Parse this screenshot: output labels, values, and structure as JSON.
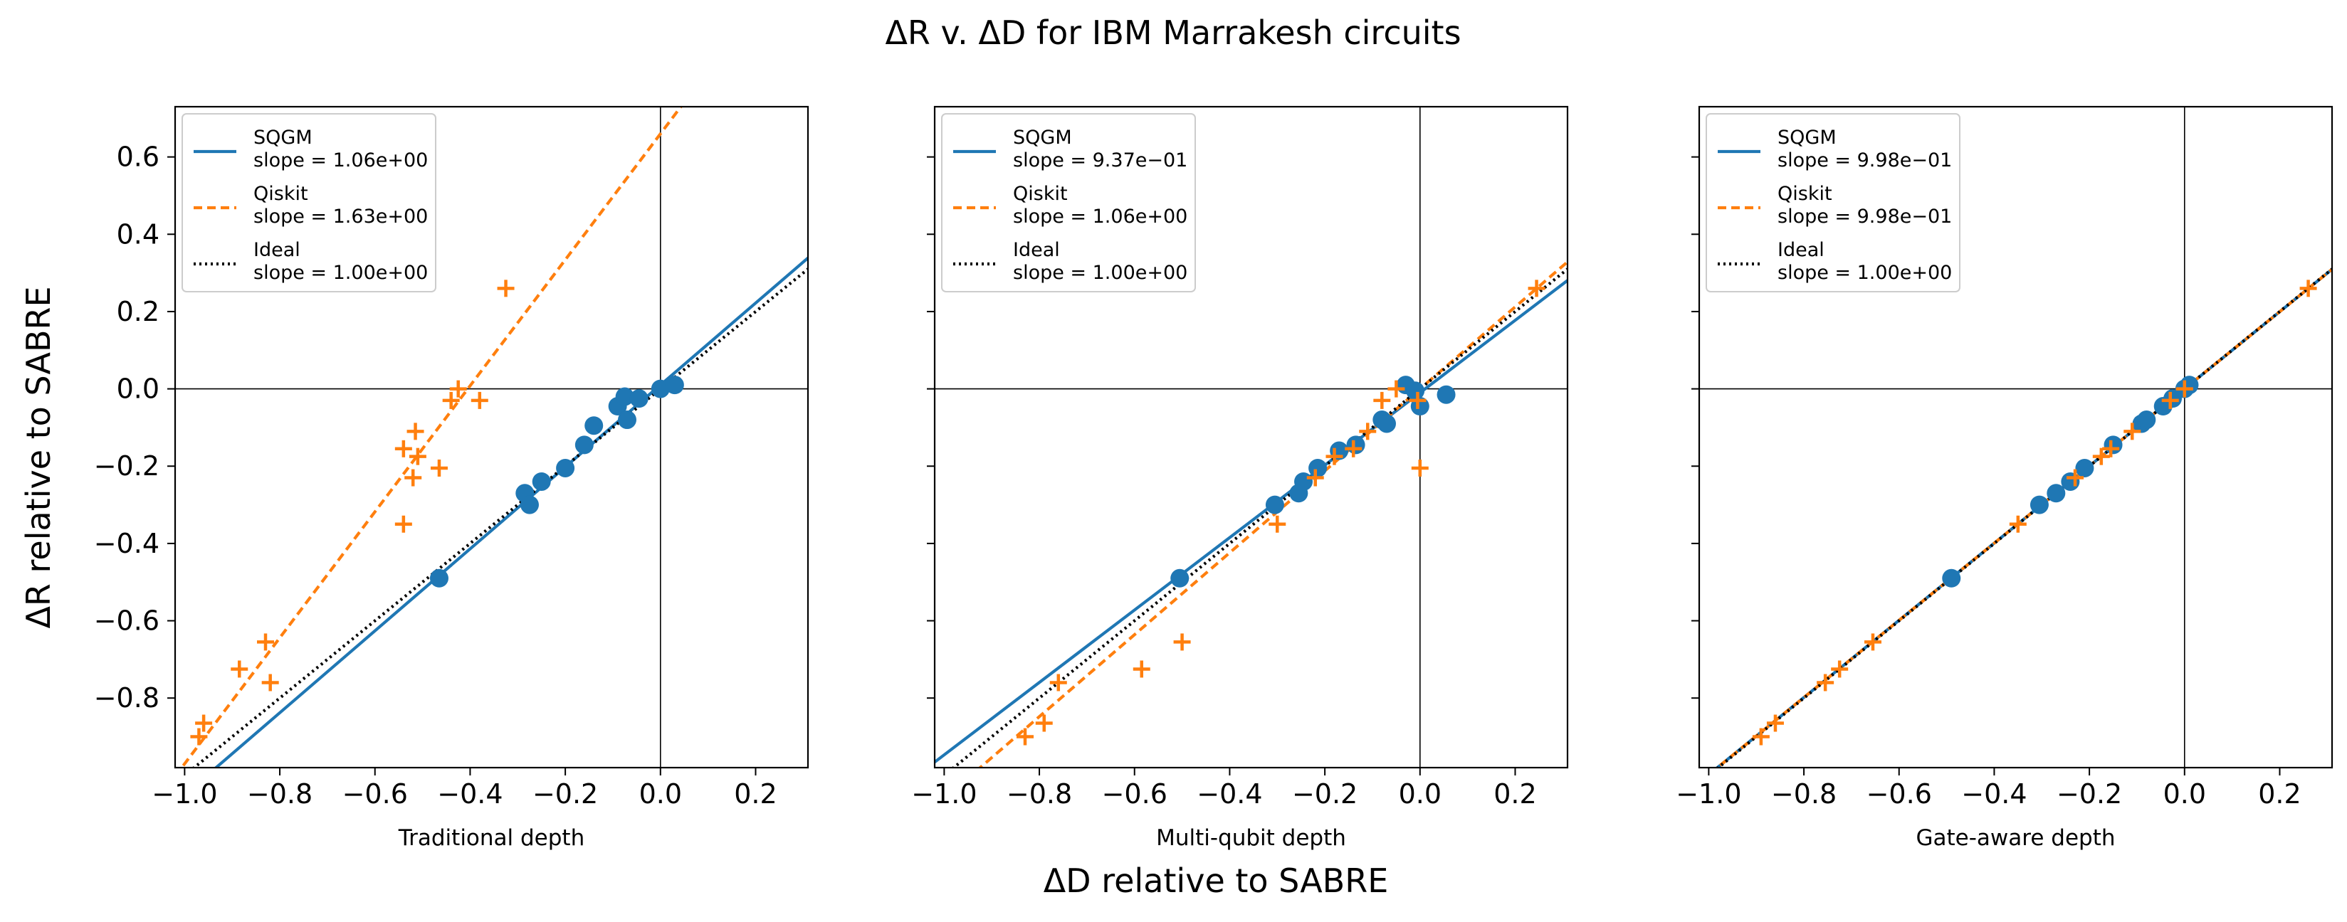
{
  "figure": {
    "title": "ΔR v. ΔD for IBM Marrakesh circuits",
    "ylabel": "ΔR relative to SABRE",
    "xlabel": "ΔD relative to SABRE"
  },
  "colors": {
    "sqgm": "#1f77b4",
    "qiskit": "#ff7f0e",
    "ideal": "#000000",
    "zero_line": "#000000"
  },
  "chart_data": [
    {
      "type": "scatter",
      "xlabel": "Traditional depth",
      "xlim": [
        -1.02,
        0.31
      ],
      "ylim": [
        -0.98,
        0.73
      ],
      "xticks": [
        -1.0,
        -0.8,
        -0.6,
        -0.4,
        -0.2,
        0.0,
        0.2
      ],
      "xtick_labels": [
        "−1.0",
        "−0.8",
        "−0.6",
        "−0.4",
        "−0.2",
        "0.0",
        "0.2"
      ],
      "yticks": [
        -0.8,
        -0.6,
        -0.4,
        -0.2,
        0.0,
        0.2,
        0.4,
        0.6
      ],
      "ytick_labels": [
        "−0.8",
        "−0.6",
        "−0.4",
        "−0.2",
        "0.0",
        "0.2",
        "0.4",
        "0.6"
      ],
      "show_ytick_labels": true,
      "legend_position": "top-left",
      "series": [
        {
          "name": "SQGM",
          "legend_label": "slope = 1.06e+00",
          "kind": "fit",
          "slope": 1.06,
          "intercept": 0.01,
          "points": [
            [
              -0.465,
              -0.49
            ],
            [
              -0.285,
              -0.27
            ],
            [
              -0.275,
              -0.3
            ],
            [
              -0.25,
              -0.24
            ],
            [
              -0.2,
              -0.205
            ],
            [
              -0.16,
              -0.145
            ],
            [
              -0.14,
              -0.095
            ],
            [
              -0.09,
              -0.045
            ],
            [
              -0.075,
              -0.02
            ],
            [
              -0.07,
              -0.08
            ],
            [
              -0.045,
              -0.025
            ],
            [
              0.0,
              0.0
            ],
            [
              0.03,
              0.01
            ]
          ]
        },
        {
          "name": "Qiskit",
          "legend_label": "slope = 1.63e+00",
          "kind": "fit",
          "slope": 1.63,
          "intercept": 0.66,
          "points": [
            [
              -0.97,
              -0.9
            ],
            [
              -0.96,
              -0.865
            ],
            [
              -0.885,
              -0.725
            ],
            [
              -0.83,
              -0.655
            ],
            [
              -0.82,
              -0.76
            ],
            [
              -0.54,
              -0.155
            ],
            [
              -0.54,
              -0.35
            ],
            [
              -0.52,
              -0.23
            ],
            [
              -0.515,
              -0.11
            ],
            [
              -0.51,
              -0.175
            ],
            [
              -0.465,
              -0.205
            ],
            [
              -0.44,
              -0.03
            ],
            [
              -0.425,
              0.0
            ],
            [
              -0.38,
              -0.03
            ],
            [
              -0.325,
              0.26
            ]
          ]
        },
        {
          "name": "Ideal",
          "legend_label": "slope = 1.00e+00",
          "kind": "reference",
          "slope": 1.0,
          "intercept": 0.0
        }
      ]
    },
    {
      "type": "scatter",
      "xlabel": "Multi-qubit depth",
      "xlim": [
        -1.02,
        0.31
      ],
      "ylim": [
        -0.98,
        0.73
      ],
      "xticks": [
        -1.0,
        -0.8,
        -0.6,
        -0.4,
        -0.2,
        0.0,
        0.2
      ],
      "xtick_labels": [
        "−1.0",
        "−0.8",
        "−0.6",
        "−0.4",
        "−0.2",
        "0.0",
        "0.2"
      ],
      "yticks": [
        -0.8,
        -0.6,
        -0.4,
        -0.2,
        0.0,
        0.2,
        0.4,
        0.6
      ],
      "ytick_labels": [
        "−0.8",
        "−0.6",
        "−0.4",
        "−0.2",
        "0.0",
        "0.2",
        "0.4",
        "0.6"
      ],
      "show_ytick_labels": false,
      "legend_position": "top-left",
      "series": [
        {
          "name": "SQGM",
          "legend_label": "slope = 9.37e−01",
          "kind": "fit",
          "slope": 0.937,
          "intercept": -0.01,
          "points": [
            [
              -0.505,
              -0.49
            ],
            [
              -0.305,
              -0.3
            ],
            [
              -0.255,
              -0.27
            ],
            [
              -0.245,
              -0.24
            ],
            [
              -0.215,
              -0.205
            ],
            [
              -0.17,
              -0.16
            ],
            [
              -0.135,
              -0.145
            ],
            [
              -0.08,
              -0.08
            ],
            [
              -0.07,
              -0.09
            ],
            [
              -0.03,
              0.01
            ],
            [
              -0.01,
              -0.005
            ],
            [
              0.0,
              -0.045
            ],
            [
              0.055,
              -0.015
            ]
          ]
        },
        {
          "name": "Qiskit",
          "legend_label": "slope = 1.06e+00",
          "kind": "fit",
          "slope": 1.06,
          "intercept": 0.0,
          "points": [
            [
              -0.83,
              -0.9
            ],
            [
              -0.79,
              -0.865
            ],
            [
              -0.76,
              -0.76
            ],
            [
              -0.585,
              -0.725
            ],
            [
              -0.5,
              -0.655
            ],
            [
              -0.3,
              -0.35
            ],
            [
              -0.22,
              -0.23
            ],
            [
              -0.18,
              -0.175
            ],
            [
              -0.14,
              -0.155
            ],
            [
              -0.11,
              -0.11
            ],
            [
              -0.08,
              -0.03
            ],
            [
              -0.05,
              0.0
            ],
            [
              -0.005,
              -0.03
            ],
            [
              0.0,
              -0.205
            ],
            [
              0.245,
              0.26
            ]
          ]
        },
        {
          "name": "Ideal",
          "legend_label": "slope = 1.00e+00",
          "kind": "reference",
          "slope": 1.0,
          "intercept": 0.0
        }
      ]
    },
    {
      "type": "scatter",
      "xlabel": "Gate-aware depth",
      "xlim": [
        -1.02,
        0.31
      ],
      "ylim": [
        -0.98,
        0.73
      ],
      "xticks": [
        -1.0,
        -0.8,
        -0.6,
        -0.4,
        -0.2,
        0.0,
        0.2
      ],
      "xtick_labels": [
        "−1.0",
        "−0.8",
        "−0.6",
        "−0.4",
        "−0.2",
        "0.0",
        "0.2"
      ],
      "yticks": [
        -0.8,
        -0.6,
        -0.4,
        -0.2,
        0.0,
        0.2,
        0.4,
        0.6
      ],
      "ytick_labels": [
        "−0.8",
        "−0.6",
        "−0.4",
        "−0.2",
        "0.0",
        "0.2",
        "0.4",
        "0.6"
      ],
      "show_ytick_labels": false,
      "legend_position": "top-left",
      "series": [
        {
          "name": "SQGM",
          "legend_label": "slope = 9.98e−01",
          "kind": "fit",
          "slope": 0.998,
          "intercept": 0.0,
          "points": [
            [
              -0.49,
              -0.49
            ],
            [
              -0.305,
              -0.3
            ],
            [
              -0.27,
              -0.27
            ],
            [
              -0.24,
              -0.24
            ],
            [
              -0.21,
              -0.205
            ],
            [
              -0.15,
              -0.145
            ],
            [
              -0.09,
              -0.09
            ],
            [
              -0.08,
              -0.08
            ],
            [
              -0.045,
              -0.045
            ],
            [
              -0.025,
              -0.025
            ],
            [
              0.0,
              0.0
            ],
            [
              0.01,
              0.01
            ]
          ]
        },
        {
          "name": "Qiskit",
          "legend_label": "slope = 9.98e−01",
          "kind": "fit",
          "slope": 0.998,
          "intercept": 0.0,
          "points": [
            [
              -0.89,
              -0.9
            ],
            [
              -0.86,
              -0.865
            ],
            [
              -0.755,
              -0.76
            ],
            [
              -0.725,
              -0.725
            ],
            [
              -0.655,
              -0.655
            ],
            [
              -0.35,
              -0.35
            ],
            [
              -0.23,
              -0.23
            ],
            [
              -0.175,
              -0.175
            ],
            [
              -0.155,
              -0.155
            ],
            [
              -0.11,
              -0.11
            ],
            [
              -0.03,
              -0.03
            ],
            [
              0.0,
              0.0
            ],
            [
              0.26,
              0.26
            ]
          ]
        },
        {
          "name": "Ideal",
          "legend_label": "slope = 1.00e+00",
          "kind": "reference",
          "slope": 1.0,
          "intercept": 0.0
        }
      ]
    }
  ]
}
